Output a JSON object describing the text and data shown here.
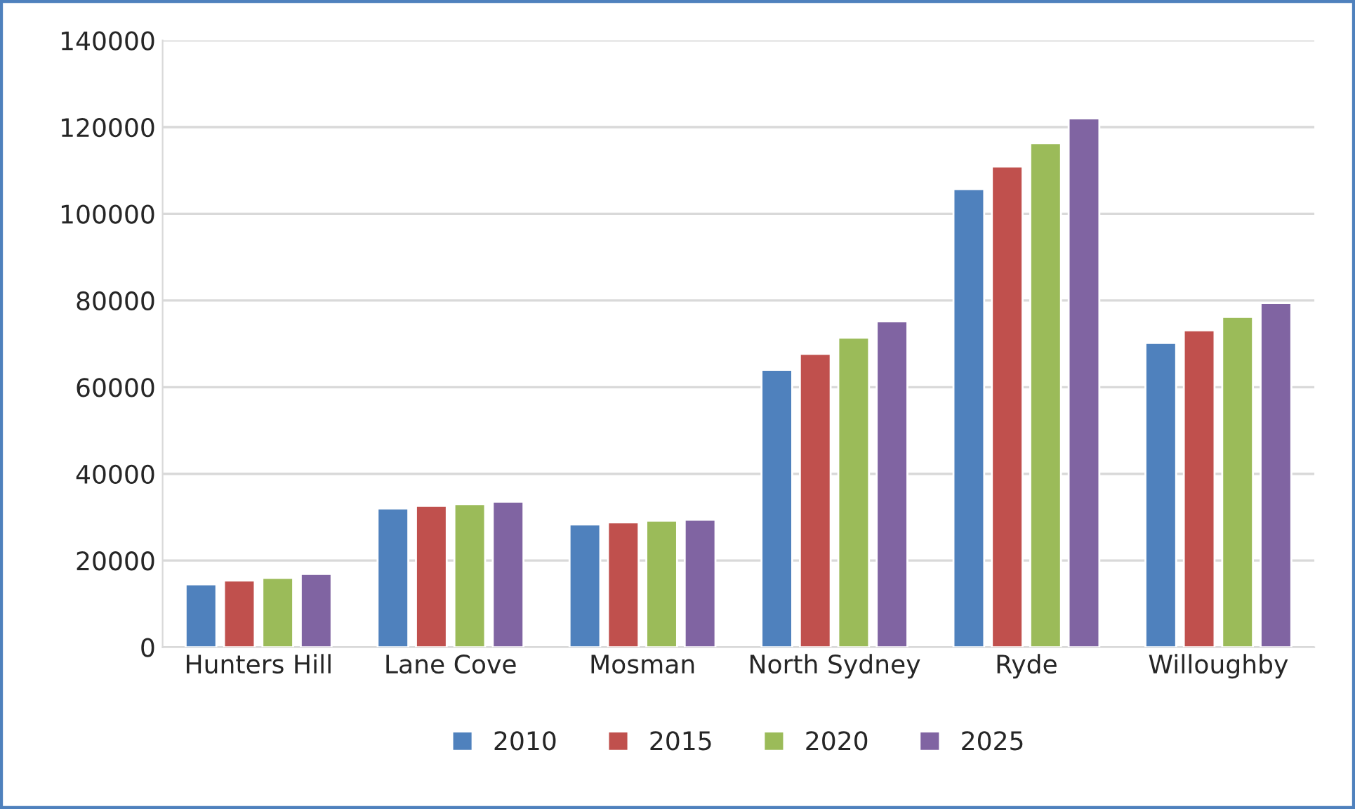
{
  "chart_data": {
    "type": "bar",
    "categories": [
      "Hunters Hill",
      "Lane Cove",
      "Mosman",
      "North Sydney",
      "Ryde",
      "Willoughby"
    ],
    "series": [
      {
        "name": "2010",
        "color": "#4f81bd",
        "values": [
          14500,
          32000,
          28300,
          64000,
          105700,
          70200
        ]
      },
      {
        "name": "2015",
        "color": "#c0504d",
        "values": [
          15400,
          32600,
          28800,
          67700,
          110900,
          73100
        ]
      },
      {
        "name": "2020",
        "color": "#9bbb59",
        "values": [
          16000,
          33000,
          29200,
          71400,
          116300,
          76200
        ]
      },
      {
        "name": "2025",
        "color": "#8064a2",
        "values": [
          16900,
          33600,
          29400,
          75200,
          122000,
          79400
        ]
      }
    ],
    "ylim": [
      0,
      140000
    ],
    "yticks": [
      0,
      20000,
      40000,
      60000,
      80000,
      100000,
      120000,
      140000
    ],
    "grid": "y",
    "legend": "bottom"
  }
}
